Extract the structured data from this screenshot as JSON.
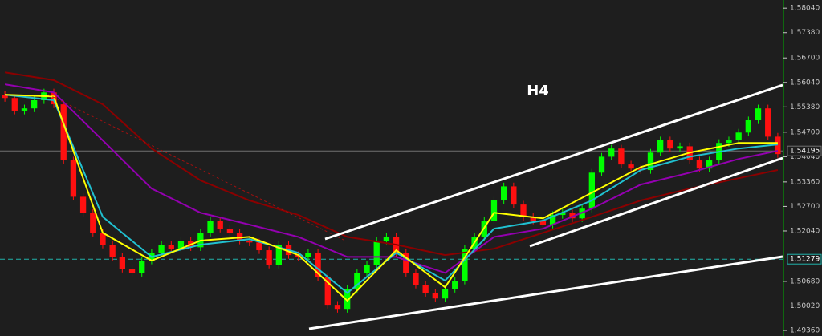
{
  "chart_data": {
    "type": "candlestick",
    "title": "H4",
    "ylim": [
      1.4921,
      1.5826
    ],
    "yticks": [
      {
        "value": 1.5804,
        "label": "1.58040"
      },
      {
        "value": 1.5738,
        "label": "1.57380"
      },
      {
        "value": 1.567,
        "label": "1.56700"
      },
      {
        "value": 1.5604,
        "label": "1.56040"
      },
      {
        "value": 1.5538,
        "label": "1.55380"
      },
      {
        "value": 1.547,
        "label": "1.54700"
      },
      {
        "value": 1.5404,
        "label": "1.54040"
      },
      {
        "value": 1.5336,
        "label": "1.53360"
      },
      {
        "value": 1.527,
        "label": "1.52700"
      },
      {
        "value": 1.5204,
        "label": "1.52040"
      },
      {
        "value": 1.5068,
        "label": "1.50680"
      },
      {
        "value": 1.5002,
        "label": "1.50020"
      },
      {
        "value": 1.4936,
        "label": "1.49360"
      }
    ],
    "colors": {
      "up": "#00ff00",
      "down": "#ff1010"
    },
    "ohlc": {
      "open": [
        1.557,
        1.5562,
        1.5528,
        1.5534,
        1.5556,
        1.5577,
        1.5545,
        1.5394,
        1.5296,
        1.5253,
        1.5199,
        1.5167,
        1.5134,
        1.5102,
        1.5091,
        1.5124,
        1.5145,
        1.5167,
        1.5156,
        1.5178,
        1.516,
        1.5199,
        1.5232,
        1.521,
        1.5199,
        1.5178,
        1.5173,
        1.5152,
        1.5113,
        1.5167,
        1.5139,
        1.5134,
        1.5145,
        1.508,
        1.5005,
        1.4994,
        1.5048,
        1.5091,
        1.5113,
        1.5178,
        1.5188,
        1.5145,
        1.5091,
        1.5059,
        1.5037,
        1.5022,
        1.5048,
        1.507,
        1.5156,
        1.5188,
        1.5232,
        1.5286,
        1.5324,
        1.5275,
        1.5242,
        1.5232,
        1.5221,
        1.5247,
        1.5253,
        1.5238,
        1.5264,
        1.5361,
        1.5404,
        1.5426,
        1.5383,
        1.5372,
        1.5368,
        1.5415,
        1.5448,
        1.5426,
        1.5432,
        1.5394,
        1.5372,
        1.5394,
        1.5441,
        1.5448,
        1.5469,
        1.5502,
        1.5534,
        1.5458
      ],
      "high": [
        1.558,
        1.5572,
        1.5544,
        1.5566,
        1.5587,
        1.5587,
        1.5555,
        1.5404,
        1.5306,
        1.5263,
        1.5209,
        1.5177,
        1.5144,
        1.5112,
        1.5134,
        1.5155,
        1.5177,
        1.5177,
        1.5188,
        1.5188,
        1.5209,
        1.5242,
        1.5242,
        1.522,
        1.5209,
        1.5188,
        1.5183,
        1.5162,
        1.5177,
        1.5177,
        1.5149,
        1.5155,
        1.5155,
        1.509,
        1.5015,
        1.5058,
        1.5101,
        1.5123,
        1.5188,
        1.5198,
        1.5198,
        1.5155,
        1.5101,
        1.5069,
        1.5047,
        1.5058,
        1.508,
        1.5166,
        1.5198,
        1.5242,
        1.5296,
        1.5334,
        1.5334,
        1.5285,
        1.5252,
        1.5242,
        1.5257,
        1.5263,
        1.5263,
        1.5274,
        1.5371,
        1.5414,
        1.5436,
        1.5436,
        1.5393,
        1.5382,
        1.5425,
        1.5458,
        1.5458,
        1.5442,
        1.5442,
        1.5404,
        1.5404,
        1.5451,
        1.5458,
        1.5479,
        1.5512,
        1.5544,
        1.5544,
        1.5468
      ],
      "low": [
        1.5552,
        1.5518,
        1.5518,
        1.5524,
        1.5546,
        1.5535,
        1.5384,
        1.5286,
        1.5243,
        1.5189,
        1.5157,
        1.5124,
        1.5092,
        1.5081,
        1.5081,
        1.5114,
        1.5135,
        1.5146,
        1.5146,
        1.515,
        1.515,
        1.5189,
        1.52,
        1.5189,
        1.5168,
        1.5163,
        1.5142,
        1.5103,
        1.5103,
        1.5129,
        1.5124,
        1.5124,
        1.507,
        1.4995,
        1.4984,
        1.4984,
        1.5038,
        1.5081,
        1.5103,
        1.5168,
        1.5135,
        1.5081,
        1.5049,
        1.5027,
        1.5012,
        1.5012,
        1.5038,
        1.506,
        1.5146,
        1.5178,
        1.5222,
        1.5276,
        1.5265,
        1.5232,
        1.5222,
        1.5211,
        1.5211,
        1.5237,
        1.5228,
        1.5228,
        1.5254,
        1.5351,
        1.5394,
        1.5373,
        1.5362,
        1.5358,
        1.5358,
        1.5405,
        1.5416,
        1.5416,
        1.5384,
        1.5362,
        1.5362,
        1.5384,
        1.5431,
        1.5438,
        1.5459,
        1.5492,
        1.5448,
        1.5401
      ],
      "close": [
        1.5562,
        1.5528,
        1.5534,
        1.5556,
        1.5577,
        1.5545,
        1.5394,
        1.5296,
        1.5253,
        1.5199,
        1.5167,
        1.5134,
        1.5102,
        1.5091,
        1.5124,
        1.5145,
        1.5167,
        1.5156,
        1.5178,
        1.516,
        1.5199,
        1.5232,
        1.521,
        1.5199,
        1.5178,
        1.5173,
        1.5152,
        1.5113,
        1.5167,
        1.5139,
        1.5134,
        1.5145,
        1.508,
        1.5005,
        1.4994,
        1.5048,
        1.5091,
        1.5113,
        1.5178,
        1.5188,
        1.5145,
        1.5091,
        1.5059,
        1.5037,
        1.5022,
        1.5048,
        1.507,
        1.5156,
        1.5188,
        1.5232,
        1.5286,
        1.5324,
        1.5275,
        1.5242,
        1.5232,
        1.5221,
        1.5247,
        1.5253,
        1.5238,
        1.5264,
        1.5361,
        1.5404,
        1.5426,
        1.5383,
        1.5372,
        1.5368,
        1.5415,
        1.5448,
        1.5426,
        1.5432,
        1.5394,
        1.5372,
        1.5394,
        1.5441,
        1.5448,
        1.5469,
        1.5502,
        1.5534,
        1.5458,
        1.5411
      ]
    },
    "lines": [
      {
        "color": "#8b0000",
        "x": [
          0,
          5,
          10,
          15,
          20,
          25,
          30,
          35,
          40,
          45,
          50,
          55,
          60,
          65,
          70,
          75,
          79
        ],
        "values": [
          1.5631,
          1.561,
          1.5545,
          1.5426,
          1.534,
          1.5286,
          1.5247,
          1.5188,
          1.5167,
          1.5139,
          1.5156,
          1.5199,
          1.5242,
          1.5286,
          1.5318,
          1.5346,
          1.5368
        ]
      },
      {
        "color": "#9400b0",
        "x": [
          0,
          5,
          10,
          15,
          20,
          25,
          30,
          35,
          40,
          45,
          50,
          55,
          60,
          65,
          70,
          75,
          79
        ],
        "values": [
          1.5599,
          1.5577,
          1.5448,
          1.5318,
          1.5253,
          1.5221,
          1.5188,
          1.5134,
          1.5134,
          1.5091,
          1.5188,
          1.521,
          1.5264,
          1.5329,
          1.5361,
          1.5398,
          1.542
        ]
      },
      {
        "color": "#20c0d0",
        "x": [
          0,
          5,
          10,
          15,
          20,
          25,
          30,
          35,
          40,
          45,
          50,
          55,
          60,
          65,
          70,
          75,
          79
        ],
        "values": [
          1.5571,
          1.5556,
          1.5242,
          1.5134,
          1.5167,
          1.5182,
          1.5145,
          1.5037,
          1.5145,
          1.507,
          1.521,
          1.5232,
          1.5286,
          1.5368,
          1.5404,
          1.5426,
          1.5437
        ]
      },
      {
        "color": "#ffff00",
        "x": [
          0,
          5,
          10,
          15,
          20,
          25,
          30,
          35,
          40,
          45,
          50,
          55,
          60,
          65,
          70,
          75,
          79
        ],
        "values": [
          1.5571,
          1.5566,
          1.5199,
          1.5124,
          1.5178,
          1.5188,
          1.5139,
          1.5016,
          1.5152,
          1.5052,
          1.5253,
          1.5238,
          1.5307,
          1.5376,
          1.5415,
          1.5441,
          1.5441
        ]
      }
    ],
    "price_lines": [
      {
        "value": 1.54195,
        "color": "#707070",
        "style": "solid"
      },
      {
        "value": 1.51279,
        "color": "#20b2aa",
        "style": "dashed"
      }
    ]
  }
}
